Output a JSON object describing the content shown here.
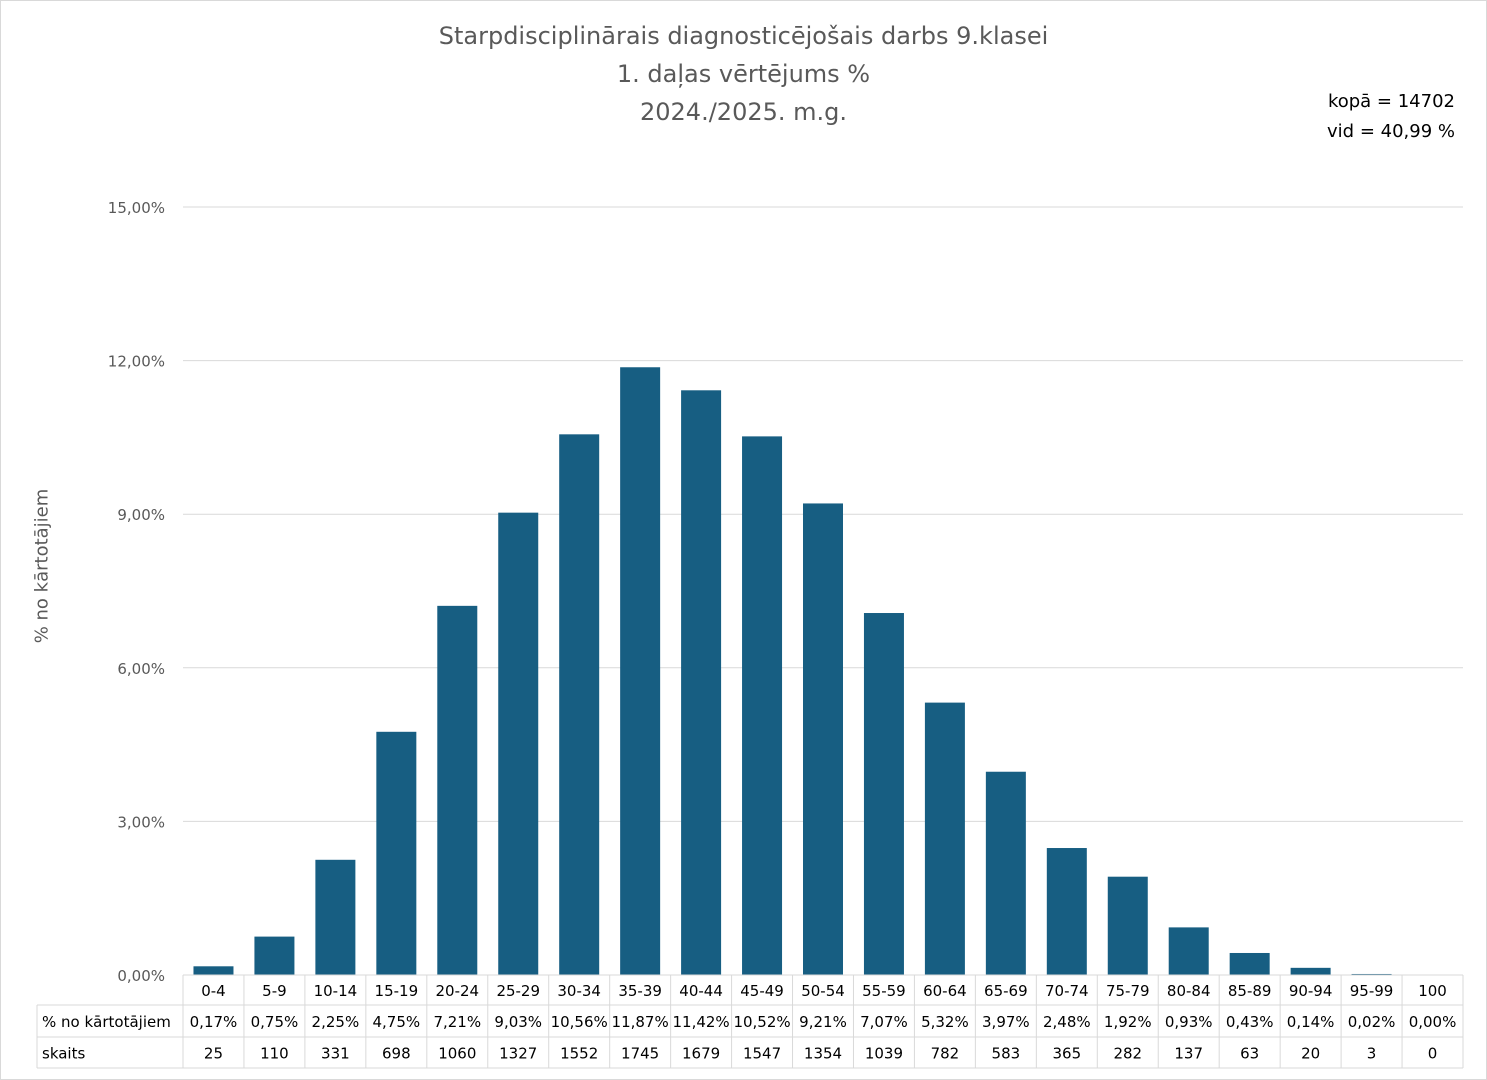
{
  "title": {
    "line1": "Starpdisciplinārais diagnosticējošais darbs 9.klasei",
    "line2": "1. daļas vērtējums %",
    "line3": "2024./2025. m.g."
  },
  "stats": {
    "total": "kopā = 14702",
    "average": "vid = 40,99 %"
  },
  "colors": {
    "bar": "#175e82",
    "grid": "#d9d9d9",
    "text": "#595959"
  },
  "chart_data": {
    "type": "bar",
    "ylabel": "% no kārtotājiem",
    "ylim": [
      0,
      15
    ],
    "yticks": [
      "0,00%",
      "3,00%",
      "6,00%",
      "9,00%",
      "12,00%",
      "15,00%"
    ],
    "ytick_values": [
      0,
      3,
      6,
      9,
      12,
      15
    ],
    "grid": true,
    "categories": [
      "0-4",
      "5-9",
      "10-14",
      "15-19",
      "20-24",
      "25-29",
      "30-34",
      "35-39",
      "40-44",
      "45-49",
      "50-54",
      "55-59",
      "60-64",
      "65-69",
      "70-74",
      "75-79",
      "80-84",
      "85-89",
      "90-94",
      "95-99",
      "100"
    ],
    "values": [
      0.17,
      0.75,
      2.25,
      4.75,
      7.21,
      9.03,
      10.56,
      11.87,
      11.42,
      10.52,
      9.21,
      7.07,
      5.32,
      3.97,
      2.48,
      1.92,
      0.93,
      0.43,
      0.14,
      0.02,
      0.0
    ],
    "table": {
      "rows": [
        {
          "label": "% no kārtotājiem",
          "cells": [
            "0,17%",
            "0,75%",
            "2,25%",
            "4,75%",
            "7,21%",
            "9,03%",
            "10,56%",
            "11,87%",
            "11,42%",
            "10,52%",
            "9,21%",
            "7,07%",
            "5,32%",
            "3,97%",
            "2,48%",
            "1,92%",
            "0,93%",
            "0,43%",
            "0,14%",
            "0,02%",
            "0,00%"
          ]
        },
        {
          "label": "skaits",
          "cells": [
            "25",
            "110",
            "331",
            "698",
            "1060",
            "1327",
            "1552",
            "1745",
            "1679",
            "1547",
            "1354",
            "1039",
            "782",
            "583",
            "365",
            "282",
            "137",
            "63",
            "20",
            "3",
            "0"
          ]
        }
      ]
    }
  }
}
